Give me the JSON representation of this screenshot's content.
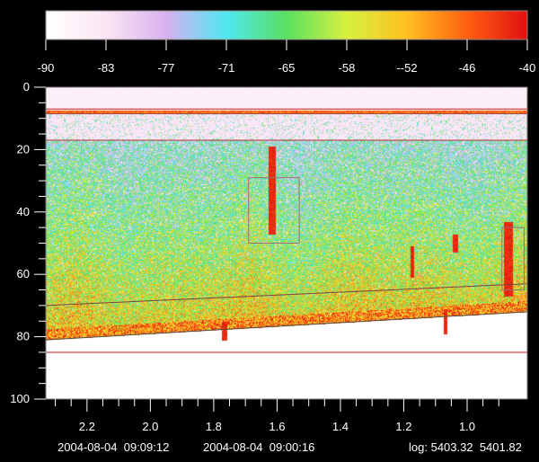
{
  "chart_data": {
    "type": "heatmap",
    "colorbar": {
      "ticks": [
        "-90",
        "-83",
        "-77",
        "-71",
        "-65",
        "-58",
        "--52",
        "-46",
        "-40"
      ],
      "colors": [
        "#ffffff",
        "#fbe6f4",
        "#d8b0f0",
        "#50e8f0",
        "#58e060",
        "#d8f040",
        "#ffc020",
        "#ff6010",
        "#e01010"
      ],
      "range": [
        -90,
        -40
      ]
    },
    "y_axis": {
      "range": [
        0,
        100
      ],
      "ticks": [
        "0",
        "20",
        "40",
        "60",
        "80",
        "100"
      ],
      "inverted": true
    },
    "x_axis": {
      "range": [
        2.33,
        0.81
      ],
      "ticks": [
        "2.2",
        "2.0",
        "1.8",
        "1.6",
        "1.4",
        "1.2",
        "1.0"
      ],
      "reversed": true
    },
    "horizontal_lines": [
      {
        "depth": 7,
        "color": "#c02020"
      },
      {
        "depth": 8.5,
        "color": "#a05050"
      },
      {
        "depth": 17,
        "color": "#b03030"
      },
      {
        "depth": 85,
        "color": "#c02020"
      }
    ],
    "sloped_lines": [
      {
        "from": [
          2.33,
          70
        ],
        "to": [
          0.81,
          63
        ],
        "color": "#804040"
      },
      {
        "from": [
          2.33,
          81
        ],
        "to": [
          0.81,
          72
        ],
        "color": "#505050"
      }
    ],
    "boxes": [
      {
        "x": [
          1.69,
          1.53
        ],
        "depth": [
          29,
          50
        ],
        "color": "#a07070"
      },
      {
        "x": [
          0.89,
          0.82
        ],
        "depth": [
          45,
          65
        ],
        "color": "#a07070"
      }
    ],
    "footer": {
      "date_start": "2004-08-04",
      "time_start": "09:09:12",
      "date_end": "2004-08-04",
      "time_end": "09:00:16",
      "log_label": "log:",
      "log_start": "5403.32",
      "log_end": "5401.82"
    }
  }
}
